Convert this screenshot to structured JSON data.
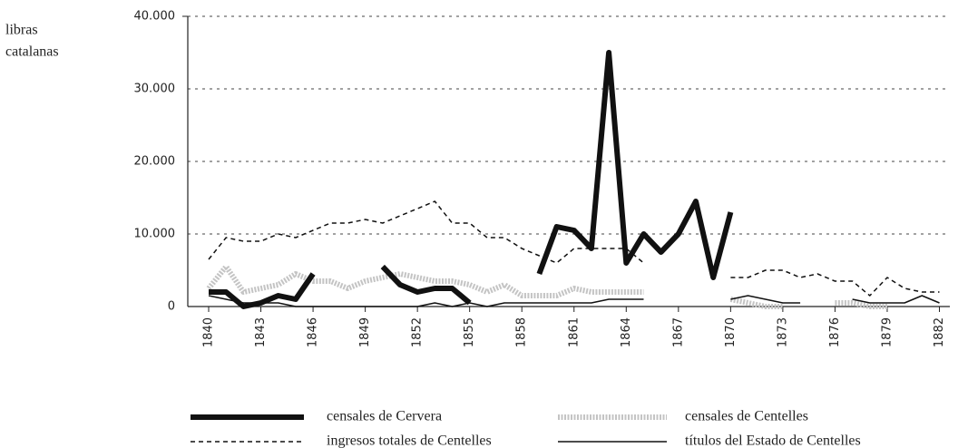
{
  "chart_data": {
    "type": "line",
    "y_label": [
      "libras",
      "catalanas"
    ],
    "x": [
      1840,
      1841,
      1842,
      1843,
      1844,
      1845,
      1846,
      1847,
      1848,
      1849,
      1850,
      1851,
      1852,
      1853,
      1854,
      1855,
      1856,
      1857,
      1858,
      1859,
      1860,
      1861,
      1862,
      1863,
      1864,
      1865,
      1866,
      1867,
      1868,
      1869,
      1870,
      1871,
      1872,
      1873,
      1874,
      1875,
      1876,
      1877,
      1878,
      1879,
      1880,
      1881,
      1882
    ],
    "xlim": [
      1838.8,
      1882.6
    ],
    "xticks": [
      1840,
      1843,
      1846,
      1849,
      1852,
      1855,
      1858,
      1861,
      1864,
      1867,
      1870,
      1873,
      1876,
      1879,
      1882
    ],
    "ylim": [
      0,
      40000
    ],
    "yticks": [
      0,
      {
        "value": 10000,
        "label": "10.000"
      },
      {
        "value": 20000,
        "label": "20.000"
      },
      {
        "value": 30000,
        "label": "30.000"
      },
      {
        "value": 40000,
        "label": "40.000"
      }
    ],
    "grid": true,
    "series": [
      {
        "name": "censales de Cervera",
        "color": "#111111",
        "width": 6,
        "dash": "none",
        "values": [
          2000,
          2000,
          0,
          500,
          1500,
          1000,
          4500,
          null,
          null,
          null,
          5500,
          3000,
          2000,
          2500,
          2500,
          500,
          null,
          null,
          null,
          4500,
          11000,
          10500,
          8000,
          35000,
          6000,
          10000,
          7500,
          10000,
          14500,
          4000,
          13000,
          null,
          null,
          null,
          null,
          null,
          null,
          null,
          null,
          null,
          null,
          null,
          null
        ]
      },
      {
        "name": "censales de Centelles",
        "color": "#c4c4c4",
        "width": 6,
        "dash": "2 1.5",
        "values": [
          2500,
          5500,
          2000,
          2500,
          3000,
          4500,
          3500,
          3500,
          2500,
          3500,
          4000,
          4500,
          4000,
          3500,
          3500,
          3000,
          2000,
          3000,
          1500,
          1500,
          1500,
          2500,
          2000,
          2000,
          2000,
          2000,
          null,
          null,
          null,
          null,
          1000,
          500,
          0,
          0,
          null,
          null,
          500,
          500,
          0,
          0,
          null,
          null,
          null
        ]
      },
      {
        "name": "ingresos totales de Centelles",
        "color": "#111111",
        "width": 1.5,
        "dash": "5 4",
        "values": [
          6500,
          9500,
          9000,
          9000,
          10000,
          9500,
          10500,
          11500,
          11500,
          12000,
          11500,
          12500,
          13500,
          14500,
          11500,
          11500,
          9500,
          9500,
          8000,
          7000,
          6000,
          8000,
          8000,
          8000,
          8000,
          6000,
          null,
          null,
          null,
          null,
          4000,
          4000,
          5000,
          5000,
          4000,
          4500,
          3500,
          3500,
          1500,
          4000,
          2500,
          2000,
          2000
        ]
      },
      {
        "name": "títulos del Estado de Centelles",
        "color": "#111111",
        "width": 1.5,
        "dash": "none",
        "values": [
          1500,
          1000,
          500,
          500,
          500,
          0,
          0,
          0,
          0,
          0,
          0,
          0,
          0,
          500,
          0,
          500,
          0,
          500,
          500,
          500,
          500,
          500,
          500,
          1000,
          1000,
          1000,
          null,
          null,
          null,
          null,
          1000,
          1500,
          1000,
          500,
          500,
          null,
          null,
          1000,
          500,
          500,
          500,
          1500,
          500
        ]
      }
    ]
  }
}
